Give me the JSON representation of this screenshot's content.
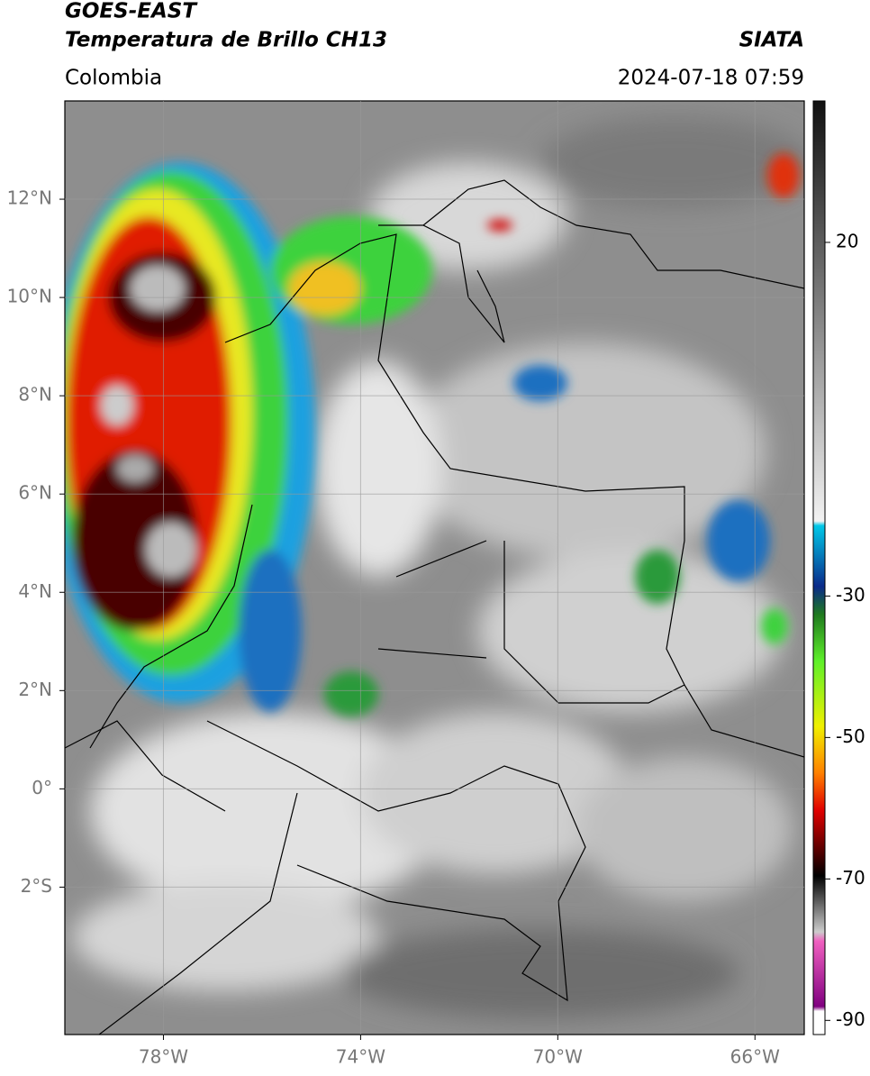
{
  "header": {
    "title": "GOES-EAST",
    "subtitle": "Temperatura de Brillo CH13",
    "agency": "SIATA",
    "region": "Colombia",
    "datetime": "2024-07-18 07:59"
  },
  "map": {
    "lonlim": [
      -80,
      -65
    ],
    "latlim": [
      -5,
      14
    ],
    "xticks": [
      {
        "value": -78,
        "label": "78°W"
      },
      {
        "value": -74,
        "label": "74°W"
      },
      {
        "value": -70,
        "label": "70°W"
      },
      {
        "value": -66,
        "label": "66°W"
      }
    ],
    "yticks": [
      {
        "value": 12,
        "label": "12°N"
      },
      {
        "value": 10,
        "label": "10°N"
      },
      {
        "value": 8,
        "label": "8°N"
      },
      {
        "value": 6,
        "label": "6°N"
      },
      {
        "value": 4,
        "label": "4°N"
      },
      {
        "value": 2,
        "label": "2°N"
      },
      {
        "value": 0,
        "label": "0°"
      },
      {
        "value": -2,
        "label": "2°S"
      }
    ],
    "grid": true
  },
  "colorbar": {
    "lim": [
      -92,
      40
    ],
    "ticks": [
      20,
      -30,
      -50,
      -70,
      -90
    ]
  }
}
